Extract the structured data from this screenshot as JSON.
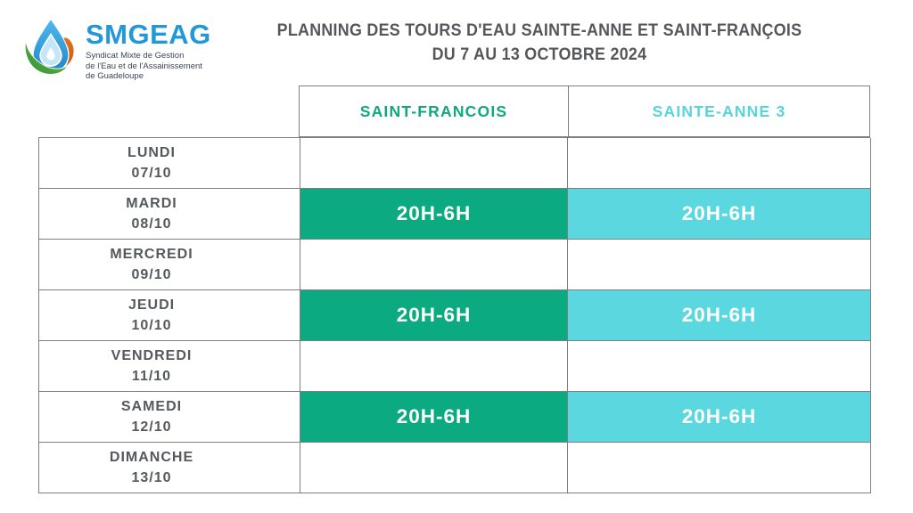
{
  "logo": {
    "name": "SMGEAG",
    "subtitle_lines": [
      "Syndicat Mixte de Gestion",
      "de l'Eau et de l'Assainissement",
      "de Guadeloupe"
    ],
    "colors": {
      "drop_blue": "#2FA0DC",
      "drop_blue_dark": "#1E7FC4",
      "inner_drop": "#C5E6F8",
      "leaf_green": "#3E9F3C",
      "leaf_green_light": "#7DC242",
      "orange": "#E2711D",
      "wordmark_blue": "#2298D8",
      "subtitle_text": "#3A4656"
    }
  },
  "title": {
    "line1": "PLANNING DES TOURS D'EAU SAINTE-ANNE ET SAINT-FRANÇOIS",
    "line2": "DU 7 AU 13 OCTOBRE 2024",
    "text_color": "#55575B"
  },
  "table": {
    "border_color": "#7E7E7E",
    "slot_text_color": "#FFFFFF",
    "day_text_color": "#55585C",
    "columns": [
      {
        "label": "SAINT-FRANCOIS",
        "header_text_color": "#0FA87D",
        "fill_color": "#0BAA80"
      },
      {
        "label": "SAINTE-ANNE 3",
        "header_text_color": "#55D4DC",
        "fill_color": "#5BD7DF"
      }
    ],
    "rows": [
      {
        "day": "LUNDI",
        "date": "07/10",
        "slots": [
          "",
          ""
        ]
      },
      {
        "day": "MARDI",
        "date": "08/10",
        "slots": [
          "20H-6H",
          "20H-6H"
        ]
      },
      {
        "day": "MERCREDI",
        "date": "09/10",
        "slots": [
          "",
          ""
        ]
      },
      {
        "day": "JEUDI",
        "date": "10/10",
        "slots": [
          "20H-6H",
          "20H-6H"
        ]
      },
      {
        "day": "VENDREDI",
        "date": "11/10",
        "slots": [
          "",
          ""
        ]
      },
      {
        "day": "SAMEDI",
        "date": "12/10",
        "slots": [
          "20H-6H",
          "20H-6H"
        ]
      },
      {
        "day": "DIMANCHE",
        "date": "13/10",
        "slots": [
          "",
          ""
        ]
      }
    ]
  }
}
